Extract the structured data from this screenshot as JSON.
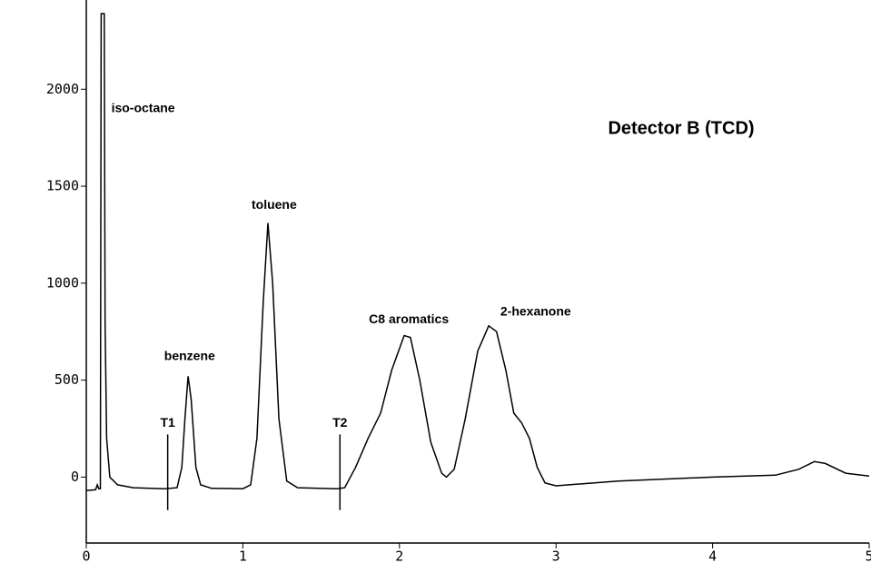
{
  "chart_data": {
    "type": "line",
    "title": "Detector B (TCD)",
    "color": "#000000",
    "x": [
      0,
      0.06,
      0.07,
      0.08,
      0.09,
      0.095,
      0.115,
      0.12,
      0.13,
      0.15,
      0.2,
      0.3,
      0.5,
      0.58,
      0.61,
      0.63,
      0.65,
      0.67,
      0.7,
      0.73,
      0.8,
      1.0,
      1.05,
      1.09,
      1.13,
      1.16,
      1.19,
      1.23,
      1.28,
      1.35,
      1.6,
      1.65,
      1.72,
      1.8,
      1.88,
      1.95,
      2.03,
      2.07,
      2.13,
      2.2,
      2.27,
      2.3,
      2.35,
      2.42,
      2.5,
      2.57,
      2.62,
      2.68,
      2.73,
      2.78,
      2.83,
      2.88,
      2.93,
      3.0,
      3.4,
      4.0,
      4.4,
      4.55,
      4.65,
      4.72,
      4.85,
      5.0
    ],
    "values": [
      -70,
      -65,
      -40,
      -60,
      -60,
      2390,
      2390,
      800,
      200,
      0,
      -40,
      -55,
      -60,
      -55,
      50,
      300,
      520,
      400,
      50,
      -40,
      -58,
      -60,
      -40,
      200,
      900,
      1310,
      1000,
      300,
      -20,
      -55,
      -60,
      -55,
      50,
      200,
      330,
      550,
      730,
      720,
      500,
      180,
      20,
      0,
      40,
      300,
      650,
      780,
      750,
      550,
      330,
      280,
      200,
      50,
      -30,
      -45,
      -20,
      0,
      10,
      40,
      80,
      70,
      20,
      5
    ],
    "xlim": [
      0,
      5
    ],
    "ylim": [
      -340,
      2390
    ],
    "xticks": [
      0,
      1,
      2,
      3,
      4,
      5
    ],
    "yticks": [
      0,
      500,
      1000,
      1500,
      2000
    ],
    "annotations": [
      {
        "text": "iso-octane",
        "x": 0.16,
        "y": 1900
      },
      {
        "text": "benzene",
        "x": 0.66,
        "y": 620
      },
      {
        "text": "toluene",
        "x": 1.2,
        "y": 1400
      },
      {
        "text": "C8 aromatics",
        "x": 2.06,
        "y": 810
      },
      {
        "text": "2-hexanone",
        "x": 2.87,
        "y": 850
      }
    ],
    "markers": [
      {
        "label": "T1",
        "x": 0.52,
        "ymin": -170,
        "ymax": 220
      },
      {
        "label": "T2",
        "x": 1.62,
        "ymin": -170,
        "ymax": 220
      }
    ]
  }
}
